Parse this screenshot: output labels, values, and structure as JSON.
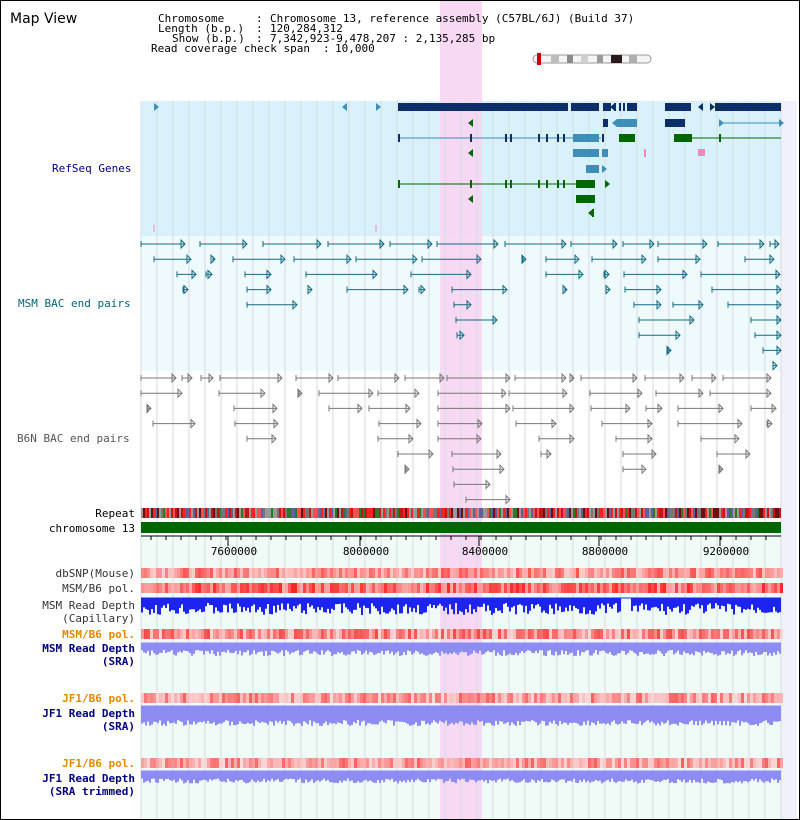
{
  "view": {
    "title": "Map View",
    "info": {
      "chromosome_label": "Chromosome",
      "chromosome_value": "Chromosome 13, reference assembly (C57BL/6J) (Build 37)",
      "length_label": "Length (b.p.)",
      "length_value": "120,284,312",
      "show_label": "Show (b.p.)",
      "show_value": "7,342,923-9,478,207 : 2,135,285 bp",
      "coverage_label": "Read coverage check span",
      "coverage_value": "10,000"
    }
  },
  "tracks": {
    "refseq": "RefSeq Genes",
    "msm_bac": "MSM BAC end pairs",
    "b6n_bac": "B6N BAC end pairs",
    "repeat": "Repeat",
    "chromosome": "chromosome 13",
    "dbsnp": "dbSNP(Mouse)",
    "msm_b6_pol": "MSM/B6 pol.",
    "msm_depth_cap": "MSM Read Depth",
    "msm_depth_cap2": "(Capillary)",
    "msm_b6_pol_sra": "MSM/B6 pol.",
    "msm_depth_sra": "MSM Read Depth",
    "msm_depth_sra2": "(SRA)",
    "jf1_b6_pol": "JF1/B6 pol.",
    "jf1_depth_sra": "JF1 Read Depth",
    "jf1_depth_sra2": "(SRA)",
    "jf1_b6_pol_trim": "JF1/B6 pol.",
    "jf1_depth_trim": "JF1 Read Depth",
    "jf1_depth_trim2": "(SRA trimmed)"
  },
  "axis": {
    "ticks": [
      "7600000",
      "8000000",
      "8400000",
      "8800000",
      "9200000"
    ]
  },
  "colors": {
    "refseq_bg": "#d9f1fb",
    "msm_bg": "#e6f8fb",
    "highlight": "#f7d7f3",
    "gene_dark": "#0d2e66",
    "gene_mid": "#3d8fb8",
    "gene_green": "#006600",
    "chromosome_bar": "#006600",
    "depth_capillary": "#1d24f0",
    "depth_sra": "#8c8cf2",
    "label_navy": "#000080",
    "label_teal": "#006677",
    "label_orange": "#e08a00"
  }
}
